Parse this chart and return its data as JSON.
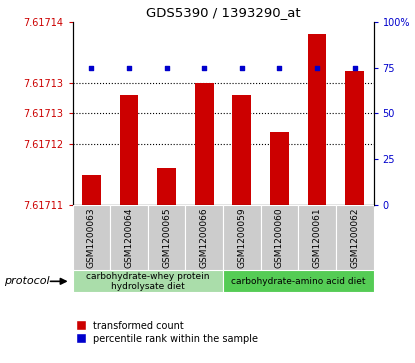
{
  "title": "GDS5390 / 1393290_at",
  "samples": [
    "GSM1200063",
    "GSM1200064",
    "GSM1200065",
    "GSM1200066",
    "GSM1200059",
    "GSM1200060",
    "GSM1200061",
    "GSM1200062"
  ],
  "red_values": [
    7.617115,
    7.617128,
    7.617116,
    7.61713,
    7.617128,
    7.617122,
    7.617138,
    7.617132
  ],
  "blue_values": [
    75,
    75,
    75,
    75,
    75,
    75,
    75,
    75
  ],
  "ylim_left": [
    7.61711,
    7.61714
  ],
  "ylim_right": [
    0,
    100
  ],
  "ytick_vals_left": [
    7.61711,
    7.61712,
    7.617125,
    7.61713,
    7.61714
  ],
  "ytick_labels_left": [
    "7.61711",
    "7.61712",
    "7.61713",
    "7.61713",
    "7.61714"
  ],
  "yticks_right": [
    0,
    25,
    50,
    75,
    100
  ],
  "ytick_labels_right": [
    "0",
    "25",
    "50",
    "75",
    "100%"
  ],
  "groups": [
    {
      "label": "carbohydrate-whey protein\nhydrolysate diet",
      "count": 4,
      "color": "#aaddaa"
    },
    {
      "label": "carbohydrate-amino acid diet",
      "count": 4,
      "color": "#55cc55"
    }
  ],
  "protocol_label": "protocol",
  "bar_color": "#cc0000",
  "dot_color": "#0000cc",
  "sample_box_color": "#cccccc",
  "legend_red": "transformed count",
  "legend_blue": "percentile rank within the sample"
}
